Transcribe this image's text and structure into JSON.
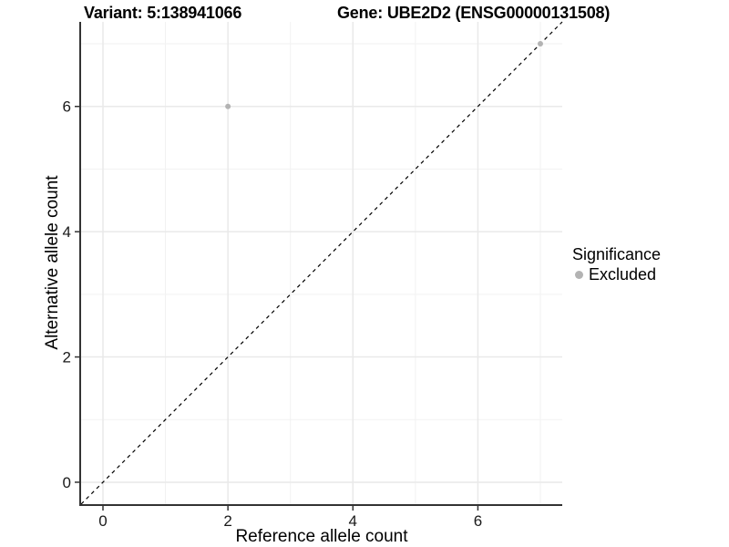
{
  "header": {
    "variant_title": "Variant: 5:138941066",
    "gene_title": "Gene: UBE2D2 (ENSG00000131508)"
  },
  "chart_data": {
    "type": "scatter",
    "xlabel": "Reference allele count",
    "ylabel": "Alternative allele count",
    "xlim": [
      -0.35,
      7.35
    ],
    "ylim": [
      -0.35,
      7.35
    ],
    "x_ticks": [
      0,
      2,
      4,
      6
    ],
    "y_ticks": [
      0,
      2,
      4,
      6
    ],
    "x_minor_ticks": [
      1,
      3,
      5,
      7
    ],
    "y_minor_ticks": [
      1,
      3,
      5,
      7
    ],
    "grid": true,
    "identity_line": {
      "style": "dashed",
      "color": "#000000",
      "from": [
        -0.35,
        -0.35
      ],
      "to": [
        7.35,
        7.35
      ]
    },
    "series": [
      {
        "name": "Excluded",
        "color": "#b3b3b3",
        "points": [
          {
            "x": 2,
            "y": 6
          },
          {
            "x": 7,
            "y": 7
          }
        ]
      }
    ],
    "legend": {
      "title": "Significance",
      "position": "right",
      "items": [
        {
          "label": "Excluded",
          "color": "#b3b3b3"
        }
      ]
    },
    "colors": {
      "axis_line": "#333333",
      "major_grid": "#e9e9e9",
      "minor_grid": "#f2f2f2",
      "tick_text": "#1a1a1a",
      "point": "#b3b3b3"
    }
  }
}
